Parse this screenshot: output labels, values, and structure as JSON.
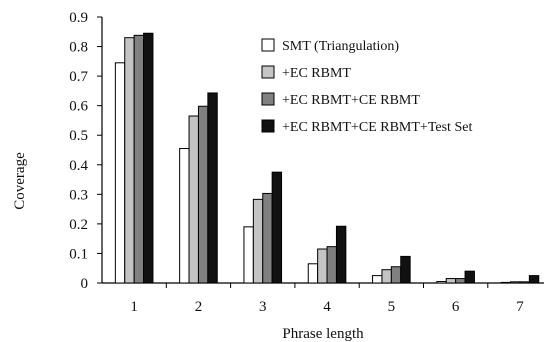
{
  "chart_data": {
    "type": "bar",
    "categories": [
      "1",
      "2",
      "3",
      "4",
      "5",
      "6",
      "7"
    ],
    "series": [
      {
        "name": "SMT (Triangulation)",
        "color": "#ffffff",
        "values": [
          0.745,
          0.455,
          0.19,
          0.065,
          0.025,
          0.005,
          0.002
        ]
      },
      {
        "name": "+EC RBMT",
        "color": "#c4c4c4",
        "values": [
          0.83,
          0.565,
          0.283,
          0.115,
          0.045,
          0.015,
          0.004
        ]
      },
      {
        "name": "+EC RBMT+CE RBMT",
        "color": "#808080",
        "values": [
          0.838,
          0.598,
          0.303,
          0.123,
          0.055,
          0.015,
          0.004
        ]
      },
      {
        "name": "+EC RBMT+CE RBMT+Test Set",
        "color": "#111111",
        "values": [
          0.845,
          0.643,
          0.375,
          0.192,
          0.09,
          0.04,
          0.025
        ]
      }
    ],
    "xlabel": "Phrase length",
    "ylabel": "Coverage",
    "ylim": [
      0,
      0.9
    ],
    "yticks": [
      "0",
      "0.1",
      "0.2",
      "0.3",
      "0.4",
      "0.5",
      "0.6",
      "0.7",
      "0.8",
      "0.9"
    ],
    "grid": false,
    "legend": "top-right"
  }
}
